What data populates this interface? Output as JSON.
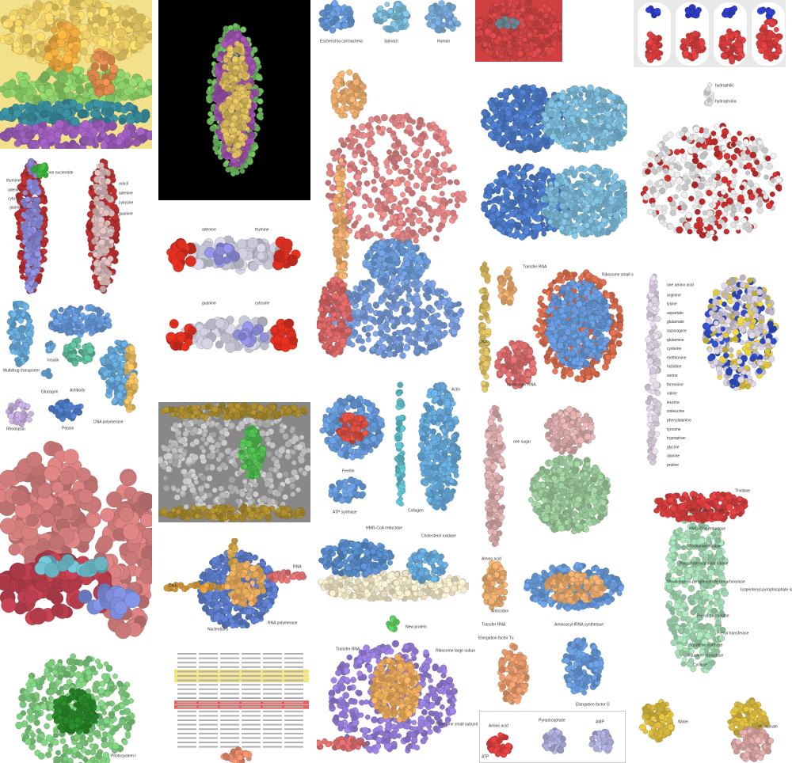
{
  "panels": [
    {
      "labels": [
        "one nucleotide",
        "thymine",
        "adenine",
        "cytosine",
        "guanine",
        "uracil",
        "adenine",
        "cytosine",
        "guanine"
      ]
    },
    {
      "labels": [
        "Multidrug transporter",
        "Insulin",
        "Glucagon",
        "Antibody",
        "Rhodopsin",
        "Pepsin",
        "DNA polymerase"
      ]
    },
    {
      "labels": [
        "Photosystem I"
      ]
    },
    {
      "labels": [
        "adenine",
        "thymine",
        "guanine",
        "cytosine"
      ]
    },
    {
      "labels": [
        "DNA",
        "RNA",
        "Nucleotides",
        "RNA polymerase"
      ]
    },
    {
      "labels": [
        "Escherichia coli bacteria",
        "Spinach",
        "Human"
      ]
    },
    {
      "labels": [
        "Ferritin",
        "ATP synthase",
        "Collagen",
        "Actin"
      ]
    },
    {
      "labels": [
        "HMG-CoA reductase",
        "Cholesterol oxidase"
      ]
    },
    {
      "labels": [
        "Transfer RNA",
        "New protein",
        "Ribosome large subunit",
        "Ribosome small subunit"
      ]
    },
    {
      "labels": [
        "DNA",
        "Transfer RNA",
        "Messenger RNA",
        "Ribosome small subunit"
      ]
    },
    {
      "labels": [
        "one sugar"
      ]
    },
    {
      "labels": [
        "Amino acid",
        "Anticodon",
        "Transfer RNA",
        "Aminoacyl-tRNA synthetase"
      ]
    },
    {
      "labels": [
        "Elongation factor Tu",
        "Elongation factor G"
      ]
    },
    {
      "labels": [
        "Amino acid",
        "Pyrophosphate",
        "AMP",
        "ATP"
      ]
    },
    {
      "labels": [
        "hydrophilic",
        "hydrophobic"
      ]
    },
    {
      "labels": [
        "one amino acid",
        "arginine",
        "lysine",
        "aspartate",
        "glutamate",
        "asparagine",
        "glutamine",
        "cysteine",
        "methionine",
        "histidine",
        "serine",
        "threonine",
        "valine",
        "leucine",
        "isoleucine",
        "phenylalanine",
        "tyrosine",
        "tryptophan",
        "glycine",
        "alanine",
        "proline"
      ]
    },
    {
      "labels": [
        "Thiolase",
        "HMG-CoA synthase",
        "HMG-CoA reductase",
        "Mevalonate kinase",
        "Phosphomevalonate kinase",
        "Mevalonate-5-pyrophosphate decarboxylase",
        "Isopentenyl-pyrophosphate isomerase",
        "Prenyl transferase",
        "Prenyl transferase",
        "Squalene synthase",
        "Squalene epoxidase",
        "Cyclase"
      ]
    },
    {
      "labels": [
        "Water",
        "Phosphate"
      ]
    }
  ]
}
